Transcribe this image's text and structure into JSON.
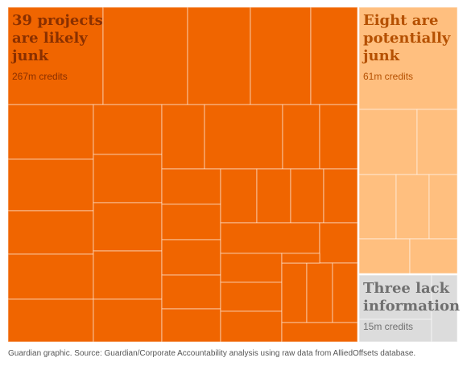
{
  "chart_data": {
    "type": "treemap",
    "unit": "credits",
    "groups": [
      {
        "key": "likely",
        "title_lines": [
          "39 projects",
          "are likely",
          "junk"
        ],
        "label": "267m credits",
        "count": 39,
        "total_m": 267,
        "color": "#f06500",
        "text_color": "#8a3000"
      },
      {
        "key": "potential",
        "title_lines": [
          "Eight are",
          "potentially",
          "junk"
        ],
        "label": "61m credits",
        "count": 8,
        "total_m": 61,
        "color": "#ffbf7f",
        "text_color": "#b55000"
      },
      {
        "key": "lack",
        "title_lines": [
          "Three lack",
          "information"
        ],
        "label": "15m credits",
        "count": 3,
        "total_m": 15,
        "color": "#dcdcdc",
        "text_color": "#707070"
      }
    ]
  },
  "source": "Guardian graphic. Source: Guardian/Corporate Accountability analysis using raw data from AlliedOffsets database."
}
